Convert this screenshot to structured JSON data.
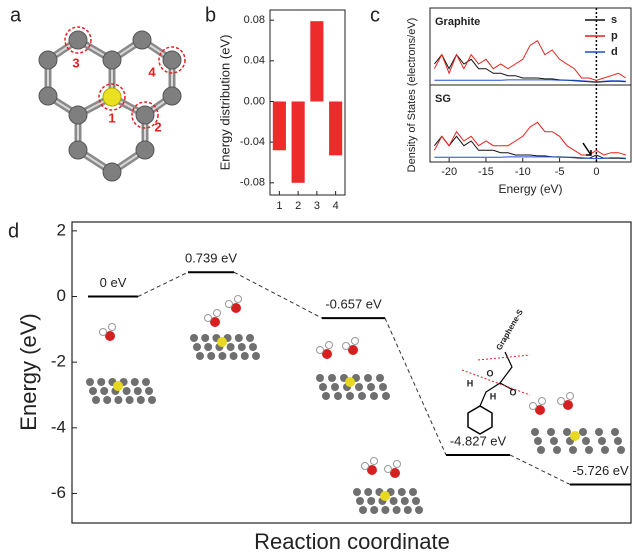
{
  "panel_a": {
    "panel": "a",
    "site_labels": [
      "1",
      "2",
      "3",
      "4"
    ]
  },
  "chart_data": [
    {
      "type": "bar",
      "panel": "b",
      "y_label": "Energy distribution (eV)",
      "categories": [
        "1",
        "2",
        "3",
        "4"
      ],
      "values": [
        -0.048,
        -0.08,
        0.079,
        -0.053
      ],
      "color": "#ee2b2b",
      "ylim": [
        -0.092,
        0.09
      ],
      "yticks": [
        0.08,
        0.04,
        {
          "value": 0,
          "label": "0.00"
        },
        -0.04,
        -0.08
      ]
    },
    {
      "type": "line",
      "panel": "c",
      "x_label": "Energy (eV)",
      "y_label": "Density of States (electrons/eV)",
      "panels": [
        {
          "label": "Graphite"
        },
        {
          "label": "SG"
        }
      ],
      "x": [
        -22,
        -21,
        -20,
        -19,
        -18,
        -17,
        -16,
        -15,
        -14,
        -13,
        -12,
        -11,
        -10,
        -9,
        -8,
        -7,
        -6,
        -5,
        -4,
        -3,
        -2,
        -1,
        0,
        1,
        2,
        3,
        4
      ],
      "xlim": [
        -22.6,
        4.7
      ],
      "xticks": [
        -20,
        -15,
        -10,
        -5,
        0
      ],
      "ylim": [
        -0.5,
        16
      ],
      "series": [
        {
          "name": "s",
          "color": "#111111",
          "values": [
            [
              4,
              6,
              3,
              6,
              4,
              5,
              3,
              3,
              2,
              2,
              1.5,
              1.5,
              1,
              1,
              1,
              0.8,
              0.8,
              0.6,
              0.5,
              0.4,
              0.3,
              0.2,
              0.1,
              0.2,
              0.3,
              0.3,
              0.2
            ],
            [
              3,
              5,
              3,
              5,
              3,
              4,
              2,
              2,
              2,
              1.5,
              1.5,
              1,
              1,
              1,
              0.8,
              0.8,
              0.6,
              0.6,
              0.5,
              0.4,
              0.3,
              0.3,
              1,
              0.3,
              0.3,
              0.3,
              0.2
            ]
          ]
        },
        {
          "name": "p",
          "color": "#e8201c",
          "values": [
            [
              3,
              6,
              2,
              6,
              3,
              6,
              4,
              5,
              3,
              4,
              3,
              4,
              5,
              8,
              9,
              6,
              7,
              5,
              4,
              3,
              1,
              1,
              0.5,
              1,
              1.5,
              2,
              1
            ],
            [
              2,
              5,
              3,
              6,
              4,
              5,
              3,
              4,
              3,
              3,
              3,
              4,
              5,
              7,
              8,
              6,
              6,
              5,
              3,
              2,
              1,
              1,
              2,
              1,
              1.5,
              1.5,
              1
            ]
          ]
        },
        {
          "name": "d",
          "color": "#1f4fd0",
          "values": [
            [
              0.5,
              0.5,
              0.5,
              0.5,
              0.5,
              0.5,
              0.5,
              0.5,
              0.5,
              0.5,
              0.6,
              0.6,
              0.6,
              0.6,
              0.6,
              0.6,
              0.6,
              0.5,
              0.5,
              0.5,
              0.4,
              0.3,
              0.2,
              0.3,
              0.4,
              0.4,
              0.3
            ],
            [
              0.5,
              0.5,
              0.5,
              0.5,
              0.5,
              0.5,
              0.5,
              0.5,
              0.5,
              0.5,
              0.6,
              0.6,
              0.6,
              0.6,
              0.6,
              0.6,
              0.6,
              0.5,
              0.5,
              0.5,
              0.4,
              0.3,
              0.2,
              0.3,
              0.4,
              0.4,
              0.3
            ]
          ]
        }
      ]
    },
    {
      "type": "energy-level",
      "panel": "d",
      "x_label": "Reaction coordinate",
      "y_label": "Energy (eV)",
      "categories": [
        null,
        null,
        null,
        null,
        null
      ],
      "values": [
        0,
        0.739,
        -0.657,
        -4.827,
        -5.726
      ],
      "value_labels": [
        "0 eV",
        "0.739 eV",
        "-0.657 eV",
        "-4.827 eV",
        "-5.726 eV"
      ],
      "ylim": [
        -6.9,
        2.27
      ],
      "yticks": [
        2,
        0,
        -2,
        -4,
        -6
      ],
      "annotations": [
        "Graphene-S",
        "H",
        "O",
        "H",
        "O"
      ]
    }
  ]
}
